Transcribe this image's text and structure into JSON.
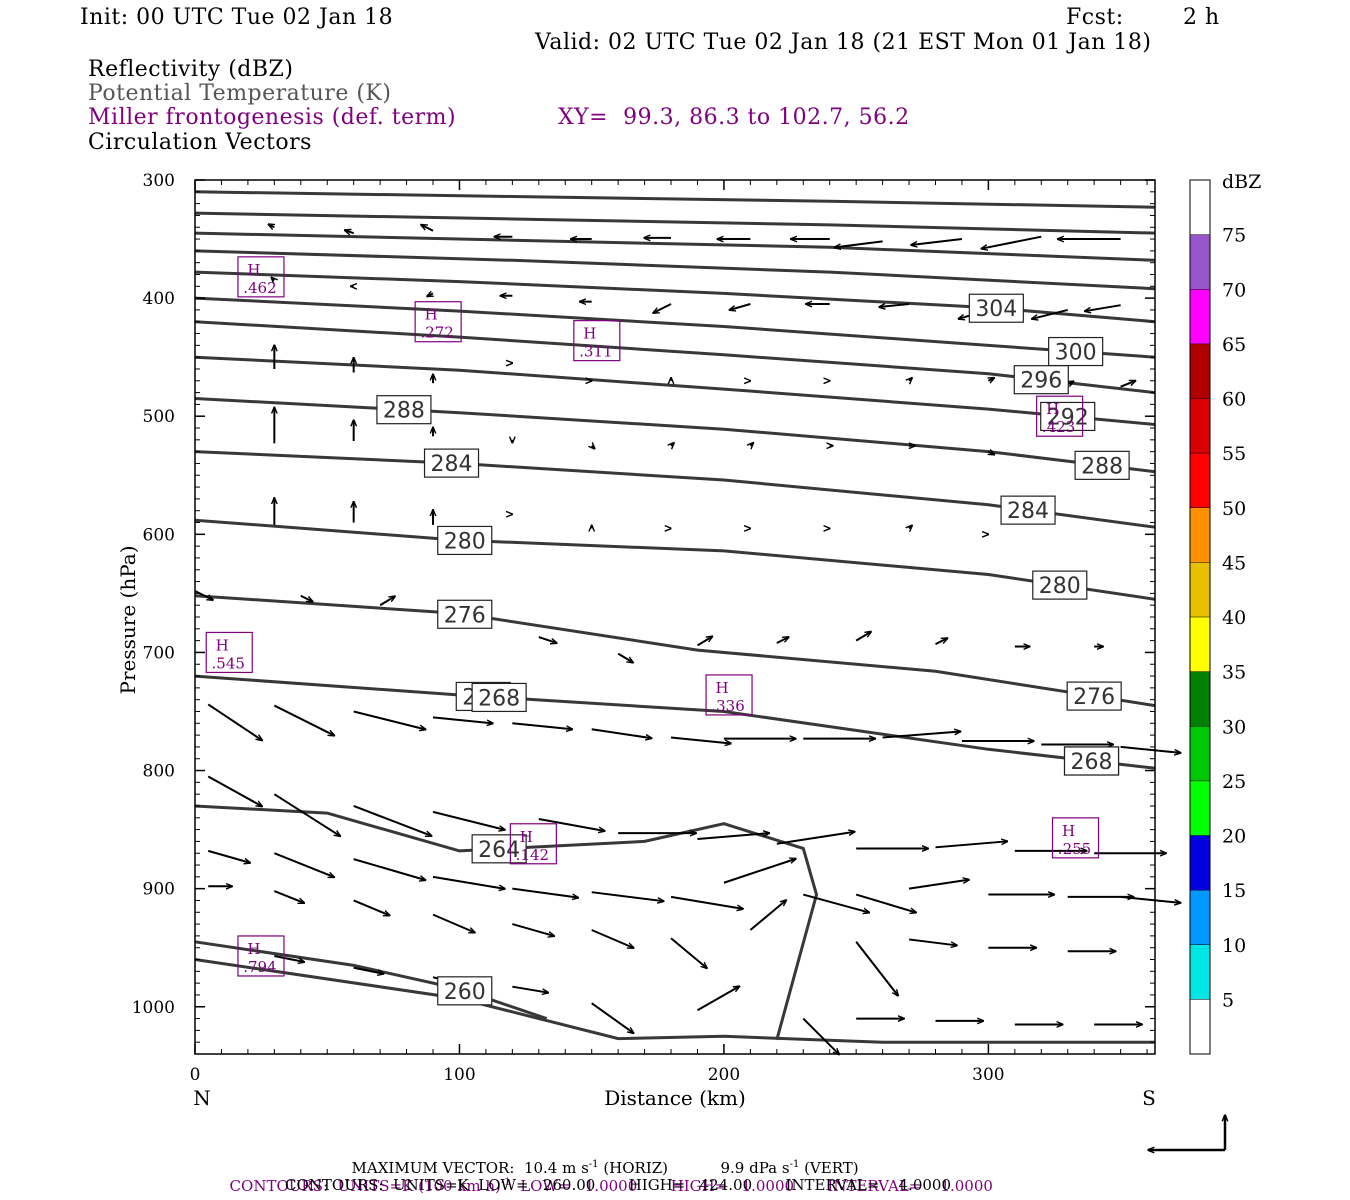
{
  "header": {
    "init": "Init: 00 UTC Tue 02 Jan 18",
    "fcst_label": "Fcst:",
    "fcst_value": "2 h",
    "valid": "Valid: 02 UTC Tue 02 Jan 18 (21 EST Mon 01 Jan 18)",
    "field1": "Reflectivity (dBZ)",
    "field2": "Potential Temperature (K)",
    "field3": "Miller frontogenesis (def. term)",
    "xy": "XY=  99.3, 86.3 to 102.7, 56.2",
    "field4": "Circulation Vectors"
  },
  "colors": {
    "contour": "#383838",
    "purple": "#800080",
    "vector": "#000000"
  },
  "chart_data": {
    "type": "contour",
    "xlabel": "Distance (km)",
    "ylabel": "Pressure (hPa)",
    "xlim": [
      0,
      363
    ],
    "ylim": [
      300,
      1040
    ],
    "x_ticks": [
      0,
      100,
      200,
      300
    ],
    "y_ticks": [
      300,
      400,
      500,
      600,
      700,
      800,
      900,
      1000
    ],
    "left_end": "N",
    "right_end": "S",
    "theta_contours": [
      {
        "points": [
          [
            0,
            310
          ],
          [
            120,
            314
          ],
          [
            240,
            318
          ],
          [
            363,
            323
          ]
        ]
      },
      {
        "points": [
          [
            0,
            328
          ],
          [
            120,
            333
          ],
          [
            240,
            338
          ],
          [
            363,
            345
          ]
        ]
      },
      {
        "points": [
          [
            0,
            345
          ],
          [
            120,
            351
          ],
          [
            240,
            357
          ],
          [
            363,
            368
          ]
        ]
      },
      {
        "points": [
          [
            0,
            360
          ],
          [
            120,
            368
          ],
          [
            240,
            378
          ],
          [
            363,
            392
          ]
        ]
      },
      {
        "label": "304",
        "lx": 303,
        "points": [
          [
            0,
            378
          ],
          [
            100,
            386
          ],
          [
            200,
            396
          ],
          [
            300,
            408
          ],
          [
            363,
            420
          ]
        ]
      },
      {
        "label": "300",
        "lx": 333,
        "points": [
          [
            0,
            400
          ],
          [
            100,
            411
          ],
          [
            200,
            424
          ],
          [
            300,
            440
          ],
          [
            363,
            450
          ]
        ]
      },
      {
        "label": "296",
        "lx": 320,
        "points": [
          [
            0,
            420
          ],
          [
            100,
            433
          ],
          [
            200,
            448
          ],
          [
            300,
            464
          ],
          [
            363,
            480
          ]
        ]
      },
      {
        "label": "292",
        "lx": 330,
        "points": [
          [
            0,
            450
          ],
          [
            100,
            461
          ],
          [
            200,
            477
          ],
          [
            300,
            494
          ],
          [
            363,
            507
          ]
        ]
      },
      {
        "label": "288",
        "lx": 79,
        "points": [
          [
            0,
            485
          ],
          [
            100,
            497
          ],
          [
            200,
            511
          ],
          [
            300,
            530
          ],
          [
            363,
            547
          ]
        ]
      },
      {
        "label": "288",
        "lx": 343,
        "points": [
          [
            0,
            485
          ],
          [
            100,
            497
          ],
          [
            200,
            511
          ],
          [
            300,
            530
          ],
          [
            363,
            547
          ]
        ]
      },
      {
        "label": "284",
        "lx": 97,
        "points": [
          [
            0,
            530
          ],
          [
            100,
            540
          ],
          [
            200,
            554
          ],
          [
            300,
            575
          ],
          [
            363,
            594
          ]
        ]
      },
      {
        "label": "284",
        "lx": 315,
        "points": [
          [
            0,
            530
          ],
          [
            100,
            540
          ],
          [
            200,
            554
          ],
          [
            300,
            575
          ],
          [
            363,
            594
          ]
        ]
      },
      {
        "label": "280",
        "lx": 102,
        "points": [
          [
            0,
            588
          ],
          [
            100,
            605
          ],
          [
            200,
            614
          ],
          [
            300,
            634
          ],
          [
            363,
            655
          ]
        ]
      },
      {
        "label": "280",
        "lx": 327,
        "points": [
          [
            0,
            588
          ],
          [
            100,
            605
          ],
          [
            200,
            614
          ],
          [
            300,
            634
          ],
          [
            363,
            655
          ]
        ]
      },
      {
        "label": "276",
        "lx": 102,
        "points": [
          [
            0,
            652
          ],
          [
            100,
            667
          ],
          [
            190,
            698
          ],
          [
            280,
            716
          ],
          [
            363,
            745
          ]
        ]
      },
      {
        "label": "276",
        "lx": 340,
        "points": [
          [
            0,
            652
          ],
          [
            100,
            667
          ],
          [
            190,
            698
          ],
          [
            280,
            716
          ],
          [
            363,
            745
          ]
        ]
      },
      {
        "label": "272",
        "lx": 109,
        "points": [
          [
            0,
            720
          ],
          [
            100,
            736
          ],
          [
            200,
            750
          ],
          [
            300,
            782
          ],
          [
            363,
            798
          ]
        ]
      },
      {
        "label": "272",
        "lx": 339,
        "points": [
          [
            0,
            720
          ],
          [
            100,
            736
          ],
          [
            200,
            750
          ],
          [
            300,
            782
          ],
          [
            363,
            798
          ]
        ]
      },
      {
        "label": "268",
        "lx": 115,
        "points": [
          [
            0,
            720
          ],
          [
            100,
            736
          ],
          [
            200,
            750
          ],
          [
            300,
            782
          ],
          [
            363,
            798
          ]
        ]
      },
      {
        "label": "268",
        "lx": 339,
        "points": [
          [
            0,
            720
          ],
          [
            100,
            736
          ],
          [
            200,
            750
          ],
          [
            300,
            782
          ],
          [
            363,
            798
          ]
        ]
      },
      {
        "label": "264",
        "lx": 115,
        "points": [
          [
            0,
            830
          ],
          [
            50,
            836
          ],
          [
            100,
            868
          ],
          [
            170,
            860
          ],
          [
            200,
            845
          ],
          [
            230,
            866
          ],
          [
            235,
            905
          ],
          [
            220,
            1028
          ]
        ]
      },
      {
        "label": "260",
        "lx": 102,
        "points": [
          [
            0,
            945
          ],
          [
            60,
            965
          ],
          [
            100,
            985
          ],
          [
            133,
            1010
          ]
        ]
      }
    ],
    "extra_lines": [
      {
        "points": [
          [
            0,
            960
          ],
          [
            100,
            993
          ],
          [
            160,
            1027
          ],
          [
            200,
            1025
          ],
          [
            260,
            1030
          ],
          [
            363,
            1030
          ]
        ]
      }
    ],
    "frontogenesis_maxima": [
      {
        "marker": "H",
        "value": ".462",
        "x": 17,
        "y": 382
      },
      {
        "marker": "H",
        "value": ".272",
        "x": 84,
        "y": 420
      },
      {
        "marker": "H",
        "value": ".311",
        "x": 144,
        "y": 436
      },
      {
        "marker": "H",
        "value": ".423",
        "x": 319,
        "y": 500
      },
      {
        "marker": "H",
        "value": ".545",
        "x": 5,
        "y": 700
      },
      {
        "marker": "H",
        "value": ".336",
        "x": 194,
        "y": 736
      },
      {
        "marker": "H",
        "value": ".142",
        "x": 120,
        "y": 862
      },
      {
        "marker": "H",
        "value": ".255",
        "x": 325,
        "y": 857
      },
      {
        "marker": "H",
        "value": ".794",
        "x": 17,
        "y": 957
      }
    ],
    "vectors": [
      [
        30,
        340,
        -2,
        -1
      ],
      [
        60,
        345,
        -3,
        -1
      ],
      [
        90,
        343,
        -4,
        -2
      ],
      [
        120,
        348,
        -6,
        0
      ],
      [
        150,
        350,
        -7,
        0
      ],
      [
        180,
        349,
        -9,
        0
      ],
      [
        210,
        350,
        -11,
        0
      ],
      [
        240,
        350,
        -13,
        0
      ],
      [
        260,
        352,
        -16,
        2
      ],
      [
        290,
        350,
        -17,
        2
      ],
      [
        320,
        348,
        -20,
        4
      ],
      [
        350,
        350,
        -21,
        0
      ],
      [
        30,
        385,
        -1,
        -1
      ],
      [
        60,
        390,
        -1,
        0
      ],
      [
        90,
        396,
        -2,
        1
      ],
      [
        120,
        398,
        -4,
        0
      ],
      [
        150,
        403,
        -4,
        0
      ],
      [
        180,
        405,
        -6,
        3
      ],
      [
        210,
        405,
        -7,
        2
      ],
      [
        240,
        405,
        -8,
        0
      ],
      [
        270,
        405,
        -10,
        1
      ],
      [
        300,
        410,
        -10,
        3
      ],
      [
        330,
        410,
        -12,
        3
      ],
      [
        350,
        406,
        -12,
        2
      ],
      [
        30,
        460,
        0,
        -8
      ],
      [
        60,
        463,
        0,
        -5
      ],
      [
        90,
        472,
        0,
        -3
      ],
      [
        120,
        455,
        0,
        0
      ],
      [
        150,
        470,
        0,
        0
      ],
      [
        180,
        470,
        0,
        -1
      ],
      [
        210,
        470,
        0,
        0
      ],
      [
        240,
        470,
        0,
        0
      ],
      [
        270,
        470,
        1,
        -1
      ],
      [
        300,
        470,
        2,
        -1
      ],
      [
        330,
        473,
        2,
        -1
      ],
      [
        350,
        475,
        5,
        -2
      ],
      [
        30,
        523,
        0,
        -12
      ],
      [
        60,
        521,
        0,
        -7
      ],
      [
        90,
        517,
        0,
        -3
      ],
      [
        120,
        520,
        0,
        1
      ],
      [
        150,
        525,
        1,
        1
      ],
      [
        180,
        525,
        1,
        -1
      ],
      [
        210,
        525,
        1,
        -1
      ],
      [
        240,
        525,
        1,
        0
      ],
      [
        270,
        525,
        2,
        0
      ],
      [
        300,
        530,
        2,
        1
      ],
      [
        30,
        592,
        0,
        -9
      ],
      [
        60,
        590,
        0,
        -7
      ],
      [
        90,
        592,
        0,
        -5
      ],
      [
        120,
        583,
        0,
        0
      ],
      [
        150,
        595,
        0,
        -1
      ],
      [
        180,
        595,
        0,
        0
      ],
      [
        210,
        595,
        0,
        0
      ],
      [
        240,
        595,
        0,
        0
      ],
      [
        270,
        595,
        1,
        -1
      ],
      [
        300,
        600,
        0,
        0
      ],
      [
        0,
        648,
        6,
        3
      ],
      [
        40,
        652,
        4,
        2
      ],
      [
        70,
        660,
        5,
        -3
      ],
      [
        100,
        675,
        5,
        -2
      ],
      [
        130,
        687,
        6,
        2
      ],
      [
        160,
        701,
        5,
        3
      ],
      [
        190,
        694,
        5,
        -3
      ],
      [
        220,
        692,
        4,
        -2
      ],
      [
        250,
        690,
        5,
        -3
      ],
      [
        280,
        693,
        4,
        -2
      ],
      [
        310,
        695,
        5,
        0
      ],
      [
        340,
        695,
        3,
        0
      ],
      [
        5,
        744,
        18,
        12
      ],
      [
        30,
        745,
        20,
        10
      ],
      [
        60,
        750,
        24,
        6
      ],
      [
        90,
        755,
        20,
        2
      ],
      [
        120,
        760,
        20,
        2
      ],
      [
        150,
        765,
        20,
        3
      ],
      [
        180,
        772,
        20,
        2
      ],
      [
        200,
        773,
        24,
        0
      ],
      [
        230,
        773,
        24,
        0
      ],
      [
        260,
        772,
        26,
        -2
      ],
      [
        290,
        775,
        24,
        0
      ],
      [
        320,
        778,
        24,
        0
      ],
      [
        350,
        780,
        20,
        2
      ],
      [
        5,
        805,
        18,
        10
      ],
      [
        30,
        820,
        22,
        14
      ],
      [
        60,
        830,
        26,
        10
      ],
      [
        90,
        835,
        24,
        6
      ],
      [
        130,
        841,
        22,
        4
      ],
      [
        160,
        853,
        26,
        0
      ],
      [
        190,
        858,
        24,
        -2
      ],
      [
        220,
        862,
        26,
        -4
      ],
      [
        250,
        866,
        24,
        0
      ],
      [
        280,
        865,
        24,
        -2
      ],
      [
        310,
        868,
        24,
        0
      ],
      [
        340,
        870,
        24,
        0
      ],
      [
        5,
        868,
        14,
        4
      ],
      [
        30,
        870,
        20,
        8
      ],
      [
        60,
        875,
        24,
        7
      ],
      [
        90,
        890,
        24,
        4
      ],
      [
        120,
        900,
        22,
        3
      ],
      [
        150,
        903,
        24,
        3
      ],
      [
        180,
        907,
        24,
        4
      ],
      [
        200,
        895,
        24,
        -8
      ],
      [
        230,
        905,
        22,
        6
      ],
      [
        250,
        905,
        20,
        6
      ],
      [
        270,
        900,
        20,
        -3
      ],
      [
        300,
        905,
        22,
        0
      ],
      [
        330,
        907,
        22,
        0
      ],
      [
        350,
        907,
        20,
        2
      ],
      [
        5,
        898,
        8,
        0
      ],
      [
        30,
        902,
        10,
        4
      ],
      [
        60,
        910,
        12,
        5
      ],
      [
        90,
        922,
        14,
        6
      ],
      [
        120,
        930,
        14,
        4
      ],
      [
        150,
        935,
        14,
        6
      ],
      [
        180,
        942,
        12,
        10
      ],
      [
        210,
        935,
        12,
        -10
      ],
      [
        250,
        945,
        14,
        18
      ],
      [
        270,
        943,
        16,
        2
      ],
      [
        300,
        950,
        16,
        0
      ],
      [
        330,
        953,
        16,
        0
      ],
      [
        30,
        957,
        10,
        2
      ],
      [
        60,
        967,
        10,
        2
      ],
      [
        90,
        975,
        12,
        3
      ],
      [
        120,
        983,
        12,
        2
      ],
      [
        150,
        997,
        14,
        10
      ],
      [
        190,
        1003,
        14,
        -8
      ],
      [
        230,
        1010,
        12,
        12
      ],
      [
        250,
        1010,
        16,
        0
      ],
      [
        280,
        1012,
        16,
        0
      ],
      [
        310,
        1015,
        16,
        0
      ],
      [
        340,
        1015,
        16,
        0
      ]
    ],
    "colorbar": {
      "unit": "dBZ",
      "levels": [
        "5",
        "10",
        "15",
        "20",
        "25",
        "30",
        "35",
        "40",
        "45",
        "50",
        "55",
        "60",
        "65",
        "70",
        "75"
      ],
      "colors": [
        "#ffffff",
        "#00e5e5",
        "#0099ff",
        "#0000e0",
        "#00ff00",
        "#00c800",
        "#008000",
        "#ffff00",
        "#e8c000",
        "#ff9000",
        "#ff0000",
        "#d80000",
        "#b00000",
        "#ff00ff",
        "#9955cc",
        "#ffffff"
      ]
    }
  },
  "footer": {
    "max_vector_label": "MAXIMUM VECTOR:",
    "max_vector_h": "10.4 m s",
    "max_vector_h_exp": "-1",
    "max_vector_h_unit": " (HORIZ)",
    "max_vector_v": "9.9 dPa s",
    "max_vector_v_exp": "-1",
    "max_vector_v_unit": " (VERT)",
    "contours1_a": "CONTOURS:  UNITS=K (100 km h)",
    "contours1_exp": "-1",
    "contours1_b": "  LOW=   1.0000       HIGH=   1.0000       INTERVAL=    1.0000",
    "contours2": "CONTOURS:  UNITS=K  LOW=   260.00       HIGH=   424.00       INTERVAL=    4.0000"
  }
}
